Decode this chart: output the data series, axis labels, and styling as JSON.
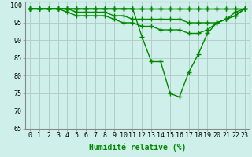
{
  "xlabel": "Humidité relative (%)",
  "xlim": [
    -0.5,
    23.5
  ],
  "ylim": [
    65,
    101
  ],
  "xticks": [
    0,
    1,
    2,
    3,
    4,
    5,
    6,
    7,
    8,
    9,
    10,
    11,
    12,
    13,
    14,
    15,
    16,
    17,
    18,
    19,
    20,
    21,
    22,
    23
  ],
  "yticks": [
    65,
    70,
    75,
    80,
    85,
    90,
    95,
    100
  ],
  "background_color": "#cff0ea",
  "grid_color": "#b0c8c4",
  "line_color": "#008800",
  "series": [
    [
      99,
      99,
      99,
      99,
      99,
      99,
      99,
      99,
      99,
      99,
      99,
      99,
      99,
      99,
      99,
      99,
      99,
      99,
      99,
      99,
      99,
      99,
      99,
      99
    ],
    [
      99,
      99,
      99,
      99,
      99,
      99,
      99,
      99,
      99,
      99,
      99,
      99,
      99,
      99,
      99,
      99,
      99,
      99,
      99,
      99,
      99,
      99,
      99,
      99
    ],
    [
      99,
      99,
      99,
      99,
      99,
      98,
      98,
      98,
      98,
      97,
      97,
      96,
      96,
      96,
      96,
      96,
      96,
      95,
      95,
      95,
      95,
      96,
      97,
      99
    ],
    [
      99,
      99,
      99,
      99,
      98,
      97,
      97,
      97,
      97,
      96,
      95,
      95,
      94,
      94,
      93,
      93,
      93,
      92,
      92,
      93,
      95,
      96,
      97,
      99
    ],
    [
      99,
      99,
      99,
      99,
      99,
      99,
      99,
      99,
      99,
      99,
      99,
      99,
      91,
      84,
      84,
      75,
      74,
      81,
      86,
      92,
      95,
      96,
      98,
      99
    ]
  ],
  "marker": "+",
  "markersize": 4,
  "linewidth": 1.0,
  "xlabel_fontsize": 7,
  "tick_fontsize": 6,
  "xlabel_color": "#008800"
}
